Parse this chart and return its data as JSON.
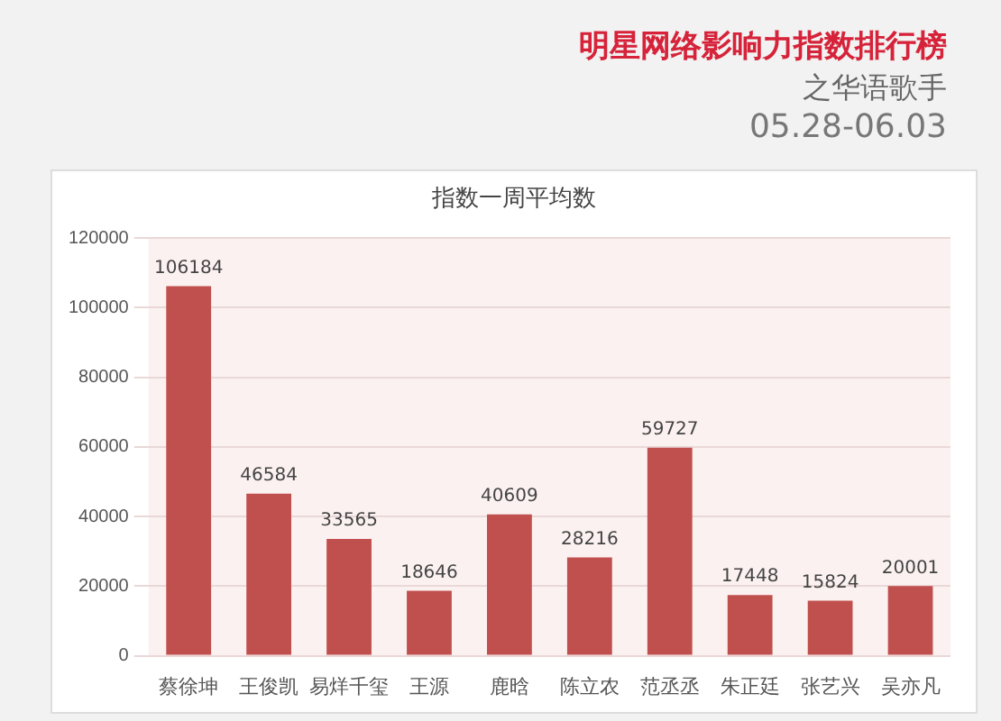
{
  "chart_data": {
    "type": "bar",
    "title": "明星网络影响力指数排行榜",
    "subtitle": "之华语歌手",
    "annotations": [
      "05.28-06.03",
      "指数一周平均数"
    ],
    "categories": [
      "蔡徐坤",
      "王俊凯",
      "易烊千玺",
      "王源",
      "鹿晗",
      "陈立农",
      "范丞丞",
      "朱正廷",
      "张艺兴",
      "吴亦凡"
    ],
    "values": [
      106184,
      46584,
      33565,
      18646,
      40609,
      28216,
      59727,
      17448,
      15824,
      20001
    ],
    "color": "#c0504d",
    "ylim": [
      0,
      120000
    ],
    "yticks": [
      0,
      20000,
      40000,
      60000,
      80000,
      100000,
      120000
    ],
    "grid": "y",
    "data_labels": true,
    "legend": false
  }
}
